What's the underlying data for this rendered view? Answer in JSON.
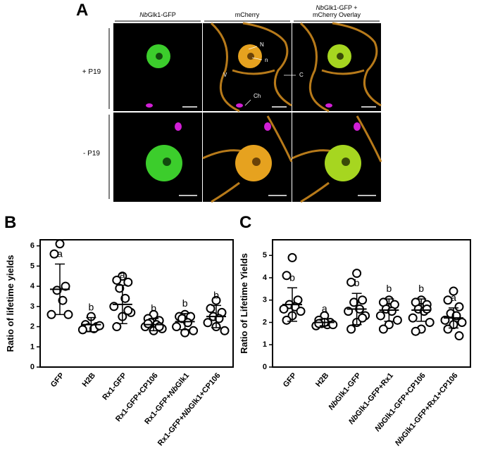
{
  "panel_a": {
    "label": "A",
    "columns": [
      [
        "NbGlk1-GFP"
      ],
      [
        "mCherry"
      ],
      [
        "NbGlk1-GFP +",
        "mCherry Overlay"
      ]
    ],
    "rows": [
      "+ P19",
      "- P19"
    ],
    "annotations": [
      "N",
      "n",
      "C",
      "V",
      "Ch"
    ]
  },
  "chart_data": [
    {
      "type": "dotplot",
      "label": "B",
      "ylabel": "Ratio of lifetime yields",
      "categories": [
        "GFP",
        "H2B",
        "Rx1-GFP",
        "Rx1-GFP+CP106",
        "Rx1-GFP+NbGlk1",
        "Rx1-GFP+NbGlk1+CP106"
      ],
      "points": [
        [
          6.1,
          5.6,
          4.0,
          3.8,
          3.3,
          2.6,
          2.6
        ],
        [
          2.5,
          2.1,
          2.0,
          1.95,
          1.9,
          1.85,
          2.05
        ],
        [
          4.5,
          4.3,
          4.2,
          3.9,
          3.4,
          3.0,
          2.7,
          2.5,
          2.0,
          2.8
        ],
        [
          2.6,
          2.4,
          2.3,
          2.2,
          2.1,
          2.0,
          1.9,
          1.8,
          2.15,
          2.0
        ],
        [
          2.6,
          2.5,
          2.5,
          2.4,
          2.2,
          2.0,
          1.8,
          1.7
        ],
        [
          3.3,
          2.9,
          2.7,
          2.5,
          2.4,
          2.2,
          1.8,
          2.0
        ]
      ],
      "means": [
        3.85,
        2.1,
        3.1,
        2.1,
        2.25,
        2.5
      ],
      "sd": [
        1.25,
        0.35,
        0.95,
        0.3,
        0.4,
        0.55
      ],
      "letters": [
        "a",
        "b",
        "a",
        "b",
        "b",
        "b"
      ],
      "ylim": [
        0,
        6.3
      ],
      "yticks": [
        0,
        1,
        2,
        3,
        4,
        5,
        6
      ]
    },
    {
      "type": "dotplot",
      "label": "C",
      "ylabel": "Ratio of Lifetime Yields",
      "categories": [
        "GFP",
        "H2B",
        "NbGlk1-GFP",
        "NbGlk1-GFP+Rx1",
        "NbGlk1-GFP+CP106",
        "NbGlk1-GFP+Rx1+CP106"
      ],
      "points": [
        [
          4.9,
          4.1,
          3.0,
          2.8,
          2.7,
          2.6,
          2.5,
          2.3,
          2.1
        ],
        [
          2.3,
          2.1,
          2.0,
          1.95,
          1.9,
          1.85,
          1.9,
          2.0,
          1.95
        ],
        [
          4.2,
          3.8,
          3.0,
          2.9,
          2.6,
          2.5,
          2.3,
          2.0,
          1.7,
          2.2
        ],
        [
          3.0,
          2.9,
          2.8,
          2.6,
          2.5,
          2.3,
          2.1,
          1.9,
          1.7
        ],
        [
          3.0,
          2.9,
          2.8,
          2.6,
          2.5,
          2.2,
          2.0,
          1.7,
          1.6,
          2.6
        ],
        [
          3.4,
          3.0,
          2.7,
          2.4,
          2.2,
          2.1,
          2.0,
          1.9,
          1.7,
          1.4,
          2.3
        ]
      ],
      "means": [
        2.8,
        2.0,
        2.6,
        2.55,
        2.55,
        2.2
      ],
      "sd": [
        0.75,
        0.15,
        0.7,
        0.5,
        0.5,
        0.45
      ],
      "letters": [
        "b",
        "a",
        "b",
        "b",
        "b",
        "a"
      ],
      "ylim": [
        0,
        5.7
      ],
      "yticks": [
        0,
        1,
        2,
        3,
        4,
        5
      ]
    }
  ]
}
